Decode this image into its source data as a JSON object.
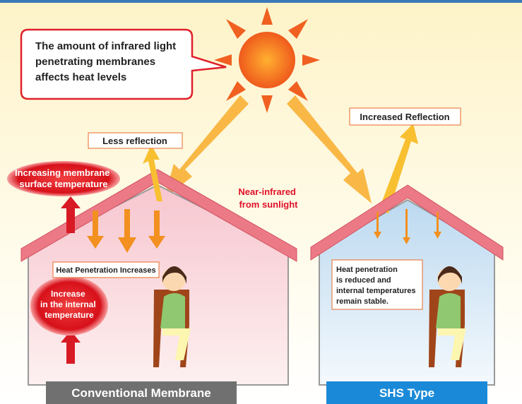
{
  "callout": {
    "lines": [
      "The amount of infrared light",
      "penetrating membranes",
      "affects heat levels"
    ]
  },
  "sun_label": {
    "lines": [
      "Near-infrared",
      "from sunlight"
    ]
  },
  "left_house": {
    "reflection_label": "Less reflection",
    "surface_temp": {
      "lines": [
        "Increasing membrane",
        "surface temperature"
      ]
    },
    "heat_label": "Heat Penetration Increases",
    "internal_temp": {
      "lines": [
        "Increase",
        "in the internal",
        "temperature"
      ]
    },
    "caption": "Conventional Membrane"
  },
  "right_house": {
    "reflection_label": "Increased Reflection",
    "heat_label": {
      "lines": [
        "Heat penetration",
        "is reduced and",
        "internal temperatures",
        "remain stable."
      ]
    },
    "caption": "SHS Type"
  }
}
